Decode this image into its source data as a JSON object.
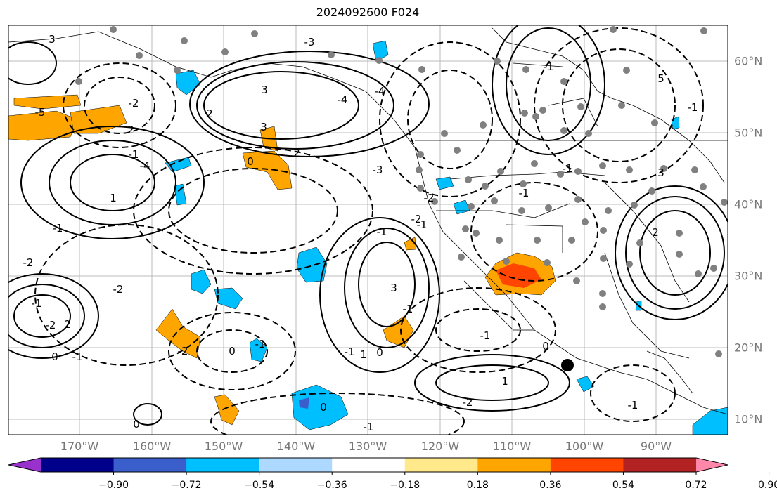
{
  "title": "2024092600 F024",
  "lon_labels": [
    "170°W",
    "160°W",
    "150°W",
    "140°W",
    "130°W",
    "120°W",
    "110°W",
    "100°W",
    "90°W"
  ],
  "lat_labels": [
    "60°N",
    "50°N",
    "40°N",
    "30°N",
    "20°N",
    "10°N"
  ],
  "colorbar": {
    "ticks": [
      "−0.90",
      "−0.72",
      "−0.54",
      "−0.36",
      "−0.18",
      "0.18",
      "0.36",
      "0.54",
      "0.72",
      "0.90"
    ],
    "colors": [
      "#9932cc",
      "#00008b",
      "#3a5fcd",
      "#00bfff",
      "#add8ff",
      "#ffffff",
      "#ffe98a",
      "#ffa500",
      "#ff4500",
      "#b22222",
      "#ff88aa"
    ]
  },
  "contour_labels": [
    "3",
    "-2",
    "2",
    "-1",
    "-5",
    "1",
    "-4",
    "2",
    "-3",
    "0",
    "-3",
    "-4",
    "3",
    "2",
    "-2",
    "-1",
    "-2",
    "-1",
    "3",
    "-1",
    "1",
    "0",
    "-1",
    "2",
    "-2",
    "-1",
    "0",
    "-1",
    "0",
    "1",
    "-1",
    "-2",
    "-1",
    "-2",
    "0",
    "-1",
    "0",
    "-1",
    "-4",
    "5",
    "-1",
    "3",
    "-2",
    "-2",
    "-1",
    "3",
    "2",
    "-1",
    "0",
    "-1",
    "-1"
  ],
  "layers": {
    "positive_shading": "#ffa500",
    "strong_positive": "#ff4500",
    "negative_shading": "#00bfff",
    "grid": "#bbbbbb",
    "stations": "#808080",
    "marker": "#000000"
  }
}
